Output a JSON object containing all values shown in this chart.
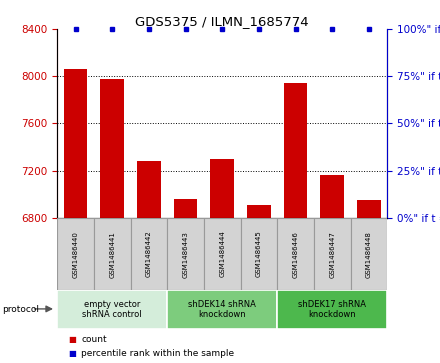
{
  "title": "GDS5375 / ILMN_1685774",
  "samples": [
    "GSM1486440",
    "GSM1486441",
    "GSM1486442",
    "GSM1486443",
    "GSM1486444",
    "GSM1486445",
    "GSM1486446",
    "GSM1486447",
    "GSM1486448"
  ],
  "counts": [
    8060,
    7980,
    7280,
    6960,
    7300,
    6910,
    7940,
    7160,
    6950
  ],
  "ylim_left": [
    6800,
    8400
  ],
  "ylim_right": [
    0,
    100
  ],
  "yticks_left": [
    6800,
    7200,
    7600,
    8000,
    8400
  ],
  "yticks_right": [
    0,
    25,
    50,
    75,
    100
  ],
  "grid_lines": [
    7200,
    7600,
    8000
  ],
  "groups": [
    {
      "label": "empty vector\nshRNA control",
      "start": 0,
      "end": 3,
      "color": "#d4edda"
    },
    {
      "label": "shDEK14 shRNA\nknockdown",
      "start": 3,
      "end": 6,
      "color": "#7dcc7d"
    },
    {
      "label": "shDEK17 shRNA\nknockdown",
      "start": 6,
      "end": 9,
      "color": "#4db84d"
    }
  ],
  "bar_color": "#cc0000",
  "dot_color": "#0000cc",
  "left_axis_color": "#cc0000",
  "right_axis_color": "#0000cc",
  "sample_box_color": "#d3d3d3",
  "sample_box_edge": "#999999",
  "legend_items": [
    {
      "label": "count",
      "color": "#cc0000"
    },
    {
      "label": "percentile rank within the sample",
      "color": "#0000cc"
    }
  ],
  "protocol_label": "protocol",
  "figsize": [
    4.4,
    3.63
  ],
  "dpi": 100
}
